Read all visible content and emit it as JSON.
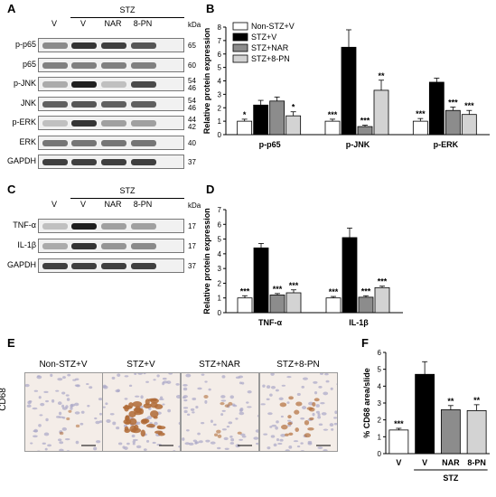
{
  "panels": {
    "a": "A",
    "b": "B",
    "c": "C",
    "d": "D",
    "e": "E",
    "f": "F"
  },
  "kda_label": "kDa",
  "blot_a": {
    "group_label": "STZ",
    "lanes": [
      "V",
      "V",
      "NAR",
      "8-PN"
    ],
    "rows": [
      {
        "label": "p-p65",
        "kda": [
          "65"
        ],
        "intensity": [
          0.45,
          0.85,
          0.8,
          0.7
        ]
      },
      {
        "label": "p65",
        "kda": [
          "60"
        ],
        "intensity": [
          0.5,
          0.5,
          0.5,
          0.5
        ]
      },
      {
        "label": "p-JNK",
        "kda": [
          "54",
          "46"
        ],
        "intensity": [
          0.3,
          0.95,
          0.2,
          0.75
        ]
      },
      {
        "label": "JNK",
        "kda": [
          "54",
          "46"
        ],
        "intensity": [
          0.65,
          0.7,
          0.65,
          0.65
        ]
      },
      {
        "label": "p-ERK",
        "kda": [
          "44",
          "42"
        ],
        "intensity": [
          0.2,
          0.85,
          0.35,
          0.35
        ]
      },
      {
        "label": "ERK",
        "kda": [
          "40"
        ],
        "intensity": [
          0.55,
          0.55,
          0.55,
          0.55
        ]
      },
      {
        "label": "GAPDH",
        "kda": [
          "37"
        ],
        "intensity": [
          0.8,
          0.8,
          0.8,
          0.8
        ]
      }
    ]
  },
  "blot_c": {
    "group_label": "STZ",
    "lanes": [
      "V",
      "V",
      "NAR",
      "8-PN"
    ],
    "rows": [
      {
        "label": "TNF-α",
        "kda": [
          "17"
        ],
        "intensity": [
          0.2,
          0.95,
          0.35,
          0.35
        ]
      },
      {
        "label": "IL-1β",
        "kda": [
          "17"
        ],
        "intensity": [
          0.3,
          0.85,
          0.4,
          0.45
        ]
      },
      {
        "label": "GAPDH",
        "kda": [
          "37"
        ],
        "intensity": [
          0.8,
          0.8,
          0.8,
          0.8
        ]
      }
    ]
  },
  "micro": {
    "row_label": "CD68",
    "titles": [
      "Non-STZ+V",
      "STZ+V",
      "STZ+NAR",
      "STZ+8-PN"
    ],
    "stain": [
      0.1,
      0.9,
      0.2,
      0.45
    ]
  },
  "colors": {
    "series": [
      "#ffffff",
      "#000000",
      "#8c8c8c",
      "#d3d3d3"
    ]
  },
  "chart_data": [
    {
      "type": "bar",
      "ylabel": "Relative protein expression",
      "ylim": [
        0,
        8
      ],
      "yticks": [
        "0",
        "1",
        "2",
        "3",
        "4",
        "5",
        "6",
        "7",
        "8"
      ],
      "categories": [
        "p-p65",
        "p-JNK",
        "p-ERK"
      ],
      "legend_placement": "top-left",
      "series": [
        {
          "name": "Non-STZ+V",
          "values": [
            1.0,
            1.0,
            1.0
          ],
          "errors": [
            0.15,
            0.15,
            0.2
          ],
          "sig": [
            "*",
            "***",
            "***"
          ]
        },
        {
          "name": "STZ+V",
          "values": [
            2.2,
            6.5,
            3.9
          ],
          "errors": [
            0.35,
            1.3,
            0.3
          ],
          "sig": [
            "",
            "",
            ""
          ]
        },
        {
          "name": "STZ+NAR",
          "values": [
            2.5,
            0.6,
            1.8
          ],
          "errors": [
            0.3,
            0.1,
            0.25
          ],
          "sig": [
            "",
            "***",
            "***"
          ]
        },
        {
          "name": "STZ+8-PN",
          "values": [
            1.4,
            3.3,
            1.5
          ],
          "errors": [
            0.3,
            0.75,
            0.3
          ],
          "sig": [
            "*",
            "**",
            "***"
          ]
        }
      ]
    },
    {
      "type": "bar",
      "ylabel": "Relative protein expression",
      "ylim": [
        0,
        7
      ],
      "yticks": [
        "0",
        "1",
        "2",
        "3",
        "4",
        "5",
        "6",
        "7"
      ],
      "categories": [
        "TNF-α",
        "IL-1β"
      ],
      "series": [
        {
          "name": "Non-STZ+V",
          "values": [
            1.0,
            1.0
          ],
          "errors": [
            0.15,
            0.1
          ],
          "sig": [
            "***",
            "***"
          ]
        },
        {
          "name": "STZ+V",
          "values": [
            4.4,
            5.1
          ],
          "errors": [
            0.3,
            0.65
          ],
          "sig": [
            "",
            ""
          ]
        },
        {
          "name": "STZ+NAR",
          "values": [
            1.2,
            1.05
          ],
          "errors": [
            0.1,
            0.1
          ],
          "sig": [
            "***",
            "***"
          ]
        },
        {
          "name": "STZ+8-PN",
          "values": [
            1.35,
            1.7
          ],
          "errors": [
            0.2,
            0.1
          ],
          "sig": [
            "***",
            "***"
          ]
        }
      ]
    },
    {
      "type": "bar",
      "ylabel": "% CD68 area/slide",
      "ylim": [
        0,
        6
      ],
      "yticks": [
        "0",
        "1",
        "2",
        "3",
        "4",
        "5",
        "6"
      ],
      "categories": [
        "V",
        "V",
        "NAR",
        "8-PN"
      ],
      "group_label": "STZ",
      "values": [
        1.4,
        4.7,
        2.6,
        2.55
      ],
      "errors": [
        0.1,
        0.75,
        0.25,
        0.35
      ],
      "sig": [
        "***",
        "",
        "**",
        "**"
      ]
    }
  ]
}
